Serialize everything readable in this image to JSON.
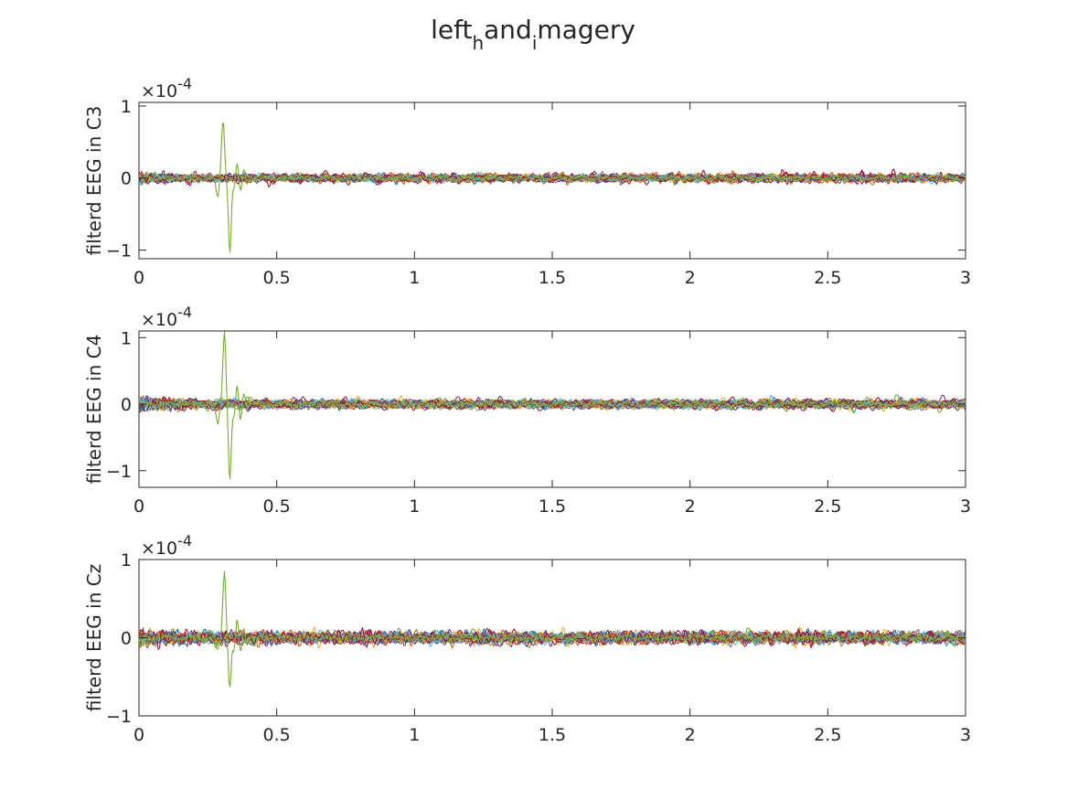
{
  "title": {
    "parts": [
      {
        "text": "left",
        "sub": false
      },
      {
        "text": "h",
        "sub": true
      },
      {
        "text": "and",
        "sub": false
      },
      {
        "text": "i",
        "sub": true
      },
      {
        "text": "magery",
        "sub": false
      }
    ]
  },
  "series_colors": [
    "#0072BD",
    "#D95319",
    "#EDB120",
    "#7E2F8E",
    "#77AC30",
    "#4DBEEE",
    "#A2142F"
  ],
  "chart_data": [
    {
      "type": "line",
      "ylabel": "filterd EEG in C3",
      "exponent": "-4",
      "xlim": [
        0,
        3
      ],
      "ylim": [
        -1.12,
        1.05
      ],
      "xticks": [
        0,
        0.5,
        1,
        1.5,
        2,
        2.5,
        3
      ],
      "xtick_labels": [
        "0",
        "0.5",
        "1",
        "1.5",
        "2",
        "2.5",
        "3"
      ],
      "yticks": [
        -1,
        0,
        1
      ],
      "ytick_labels": [
        "−1",
        "0",
        "1"
      ],
      "grid": false,
      "trial_count": 28,
      "noise_amplitude": 0.045,
      "spike": {
        "series_color": "#77AC30",
        "t_peak": 0.305,
        "peak": 0.8,
        "t_trough": 0.33,
        "trough": -1.1
      }
    },
    {
      "type": "line",
      "ylabel": "filterd EEG in C4",
      "exponent": "-4",
      "xlim": [
        0,
        3
      ],
      "ylim": [
        -1.25,
        1.1
      ],
      "xticks": [
        0,
        0.5,
        1,
        1.5,
        2,
        2.5,
        3
      ],
      "xtick_labels": [
        "0",
        "0.5",
        "1",
        "1.5",
        "2",
        "2.5",
        "3"
      ],
      "yticks": [
        -1,
        0,
        1
      ],
      "ytick_labels": [
        "−1",
        "0",
        "1"
      ],
      "grid": false,
      "trial_count": 28,
      "noise_amplitude": 0.055,
      "spike": {
        "series_color": "#77AC30",
        "t_peak": 0.31,
        "peak": 1.08,
        "t_trough": 0.33,
        "trough": -1.22
      }
    },
    {
      "type": "line",
      "ylabel": "filterd EEG in Cz",
      "exponent": "-4",
      "xlim": [
        0,
        3
      ],
      "ylim": [
        -1,
        1
      ],
      "xticks": [
        0,
        0.5,
        1,
        1.5,
        2,
        2.5,
        3
      ],
      "xtick_labels": [
        "0",
        "0.5",
        "1",
        "1.5",
        "2",
        "2.5",
        "3"
      ],
      "yticks": [
        -1,
        0,
        1
      ],
      "ytick_labels": [
        "−1",
        "0",
        "1"
      ],
      "grid": false,
      "trial_count": 28,
      "noise_amplitude": 0.06,
      "spike": {
        "series_color": "#77AC30",
        "t_peak": 0.31,
        "peak": 0.85,
        "t_trough": 0.33,
        "trough": -0.7
      }
    }
  ]
}
